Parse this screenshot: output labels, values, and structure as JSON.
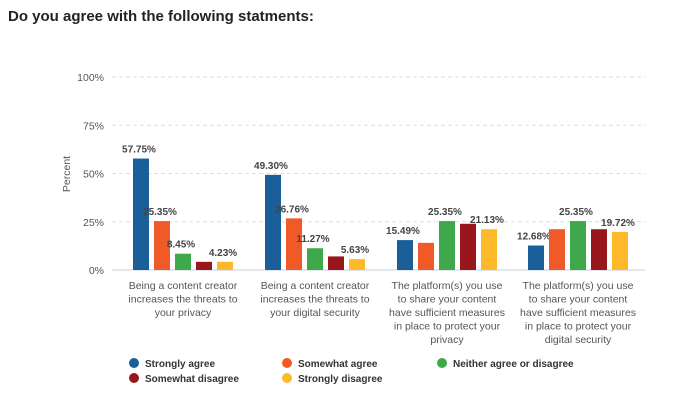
{
  "title": "Do you agree with the following statments:",
  "chart_data": {
    "type": "bar",
    "ylabel": "Percent",
    "ylim": [
      0,
      100
    ],
    "yticks": [
      "0%",
      "25%",
      "50%",
      "75%",
      "100%"
    ],
    "grid": true,
    "legend_position": "bottom",
    "categories": [
      [
        "Being a content creator",
        "increases the threats to",
        "your privacy"
      ],
      [
        "Being a content creator",
        "increases the threats to",
        "your digital security"
      ],
      [
        "The platform(s) you use",
        "to share your content",
        "have sufficient measures",
        "in place to protect your",
        "privacy"
      ],
      [
        "The platform(s) you use",
        "to share your content",
        "have sufficient measures",
        "in place to protect your",
        "digital security"
      ]
    ],
    "series": [
      {
        "name": "Strongly agree",
        "color": "#1a5e9a",
        "values": [
          57.75,
          49.3,
          15.49,
          12.68
        ],
        "labels": [
          "57.75%",
          "49.30%",
          "15.49%",
          "12.68%"
        ]
      },
      {
        "name": "Somewhat agree",
        "color": "#f05a28",
        "values": [
          25.35,
          26.76,
          14.08,
          21.13
        ],
        "labels": [
          "25.35%",
          "26.76%",
          null,
          null
        ]
      },
      {
        "name": "Neither agree or disagree",
        "color": "#3fa84a",
        "values": [
          8.45,
          11.27,
          25.35,
          25.35
        ],
        "labels": [
          "8.45%",
          "11.27%",
          "25.35%",
          "25.35%"
        ]
      },
      {
        "name": "Somewhat disagree",
        "color": "#98161c",
        "values": [
          4.23,
          7.04,
          23.94,
          21.13
        ],
        "labels": [
          null,
          null,
          null,
          null
        ]
      },
      {
        "name": "Strongly disagree",
        "color": "#fdb92a",
        "values": [
          4.23,
          5.63,
          21.13,
          19.72
        ],
        "labels": [
          "4.23%",
          "5.63%",
          "21.13%",
          "19.72%"
        ]
      }
    ]
  }
}
